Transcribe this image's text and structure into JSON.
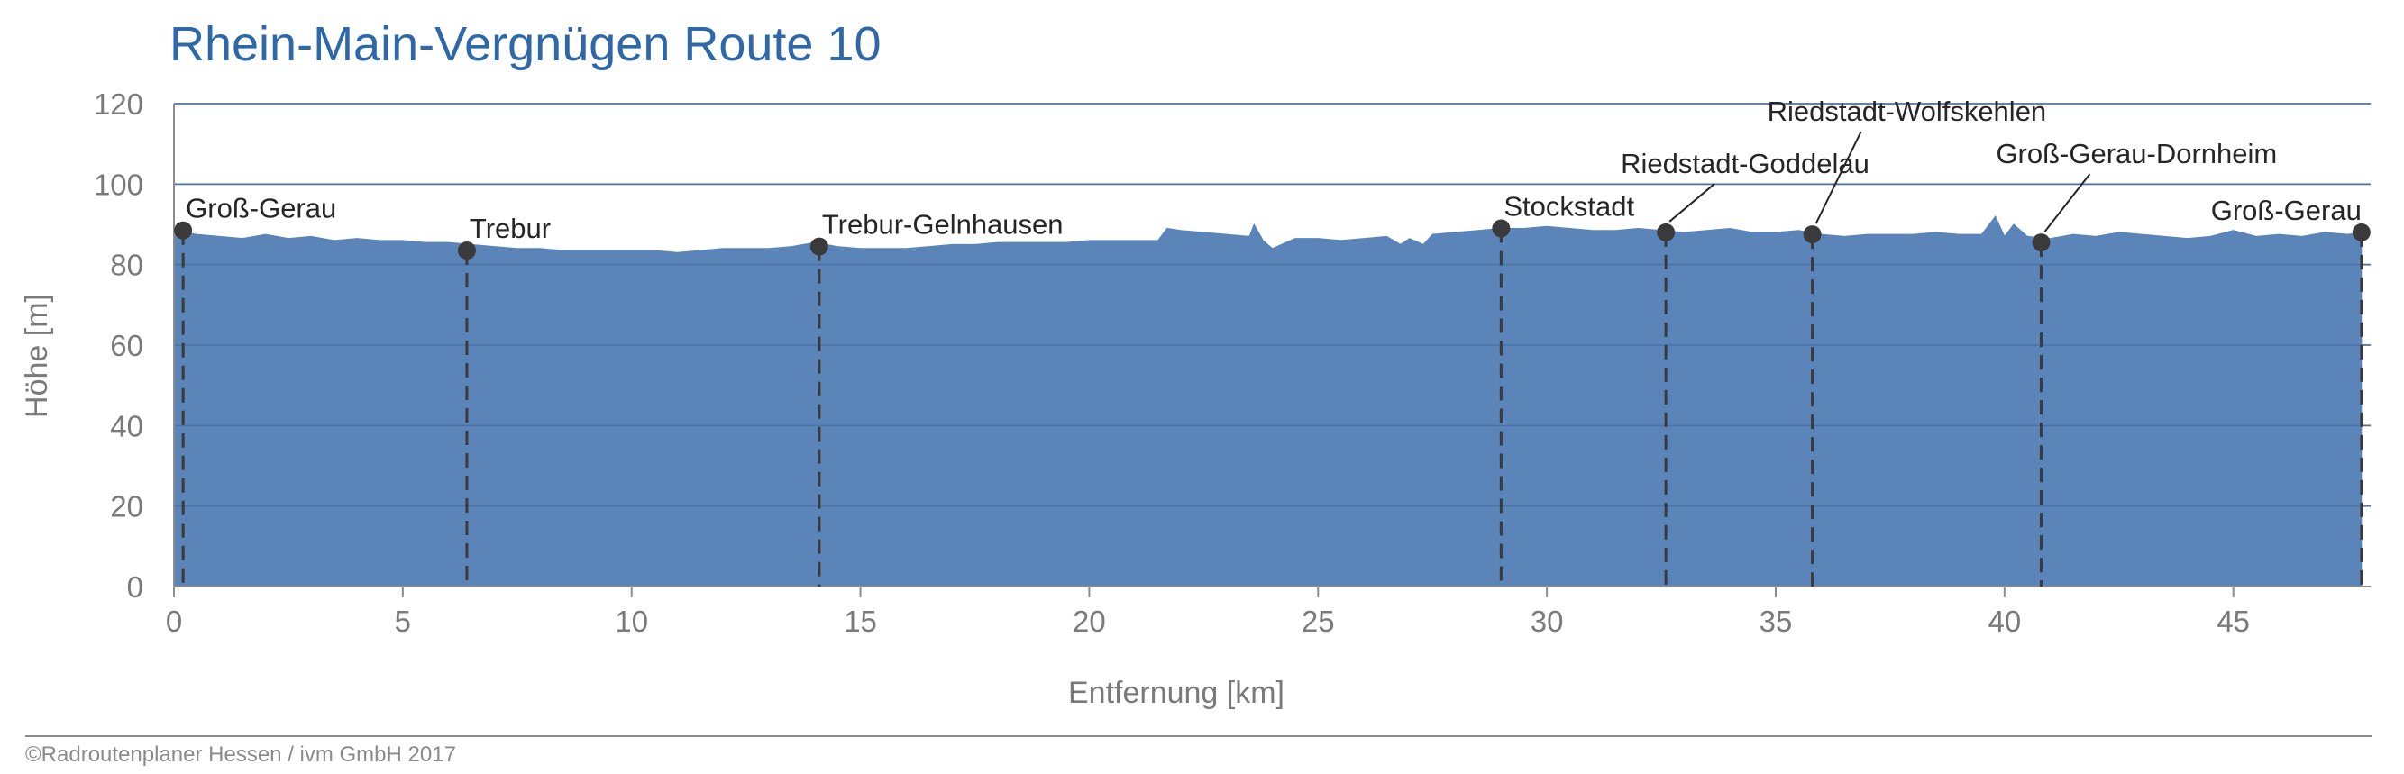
{
  "chart_data": {
    "type": "area",
    "title": "Rhein-Main-Vergnügen Route 10",
    "xlabel": "Entfernung [km]",
    "ylabel": "Höhe [m]",
    "xlim": [
      0,
      48
    ],
    "ylim": [
      0,
      120
    ],
    "x_ticks": [
      0,
      5,
      10,
      15,
      20,
      25,
      30,
      35,
      40,
      45
    ],
    "y_ticks": [
      0,
      20,
      40,
      60,
      80,
      100,
      120
    ],
    "grid": "horizontal",
    "fill_color": "#5b84b8",
    "series": [
      {
        "x": [
          0,
          0.5,
          1,
          1.5,
          2,
          2.5,
          3,
          3.5,
          4,
          4.5,
          5,
          5.5,
          6,
          6.5,
          7,
          7.5,
          8,
          8.5,
          9,
          9.5,
          10,
          10.5,
          11,
          11.5,
          12,
          12.5,
          13,
          13.5,
          14,
          14.5,
          15,
          15.5,
          16,
          16.5,
          17,
          17.5,
          18,
          18.5,
          19,
          19.5,
          20,
          20.5,
          21,
          21.5,
          21.7,
          22,
          22.5,
          23,
          23.5,
          23.6,
          23.8,
          24,
          24.3,
          24.5,
          25,
          25.5,
          26,
          26.5,
          26.8,
          27,
          27.3,
          27.5,
          28,
          28.5,
          29,
          29.5,
          30,
          30.5,
          31,
          31.5,
          32,
          32.5,
          33,
          33.5,
          34,
          34.5,
          35,
          35.5,
          36,
          36.5,
          37,
          37.5,
          38,
          38.5,
          39,
          39.5,
          39.8,
          40,
          40.2,
          40.5,
          41,
          41.5,
          42,
          42.5,
          43,
          43.5,
          44,
          44.5,
          45,
          45.5,
          46,
          46.5,
          47,
          47.5,
          47.8
        ],
        "y": [
          88.5,
          87.5,
          87,
          86.5,
          87.5,
          86.5,
          87,
          86,
          86.5,
          86,
          86,
          85.5,
          85.5,
          85,
          84.5,
          84,
          84,
          83.5,
          83.5,
          83.5,
          83.5,
          83.5,
          83,
          83.5,
          84,
          84,
          84,
          84.5,
          85.5,
          84.5,
          84,
          84,
          84,
          84.5,
          85,
          85,
          85.5,
          85.5,
          85.5,
          85.5,
          86,
          86,
          86,
          86,
          89,
          88.5,
          88,
          87.5,
          87,
          90,
          86,
          84,
          85.5,
          86.5,
          86.5,
          86,
          86.5,
          87,
          85,
          86.5,
          85,
          87.5,
          88,
          88.5,
          89,
          89,
          89.5,
          89,
          88.5,
          88.5,
          89,
          88.5,
          88,
          88.5,
          89,
          88,
          88,
          88.5,
          87.5,
          87,
          87.5,
          87.5,
          87.5,
          88,
          87.5,
          87.5,
          92,
          87,
          90,
          87,
          86.5,
          87.5,
          87,
          88,
          87.5,
          87,
          86.5,
          87,
          88.5,
          87,
          87.5,
          87,
          88,
          87.5,
          88
        ]
      }
    ],
    "waypoints": [
      {
        "label": "Groß-Gerau",
        "x": 0.2,
        "y": 88.5,
        "label_align": "right-of-point"
      },
      {
        "label": "Trebur",
        "x": 6.4,
        "y": 83.5,
        "label_align": "right-of-point"
      },
      {
        "label": "Trebur-Gelnhausen",
        "x": 14.1,
        "y": 84.5,
        "label_align": "right-of-point"
      },
      {
        "label": "Stockstadt",
        "x": 29.0,
        "y": 89,
        "label_align": "right-of-point"
      },
      {
        "label": "Riedstadt-Goddelau",
        "x": 32.6,
        "y": 88,
        "label_align": "callout"
      },
      {
        "label": "Riedstadt-Wolfskehlen",
        "x": 35.8,
        "y": 87.5,
        "label_align": "callout"
      },
      {
        "label": "Groß-Gerau-Dornheim",
        "x": 40.8,
        "y": 85.5,
        "label_align": "callout"
      },
      {
        "label": "Groß-Gerau",
        "x": 47.8,
        "y": 88,
        "label_align": "left-of-point"
      }
    ]
  },
  "footer": {
    "credit": "©Radroutenplaner Hessen / ivm GmbH 2017"
  }
}
